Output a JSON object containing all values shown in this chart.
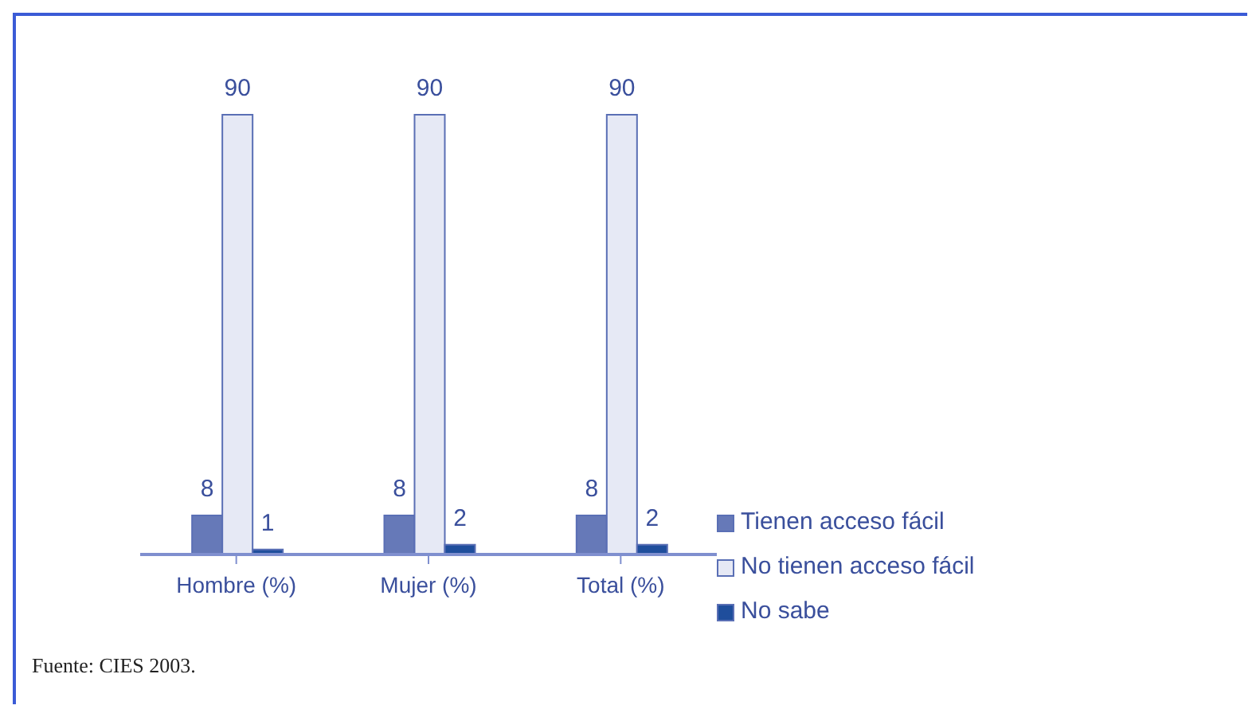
{
  "chart_data": {
    "type": "bar",
    "categories": [
      "Hombre (%)",
      "Mujer (%)",
      "Total (%)"
    ],
    "series": [
      {
        "name": "Tienen acceso fácil",
        "color": "#6679b8",
        "values": [
          8,
          8,
          8
        ]
      },
      {
        "name": "No tienen acceso fácil",
        "color": "#e6e9f5",
        "values": [
          90,
          90,
          90
        ]
      },
      {
        "name": "No sabe",
        "color": "#1f4e9c",
        "values": [
          1,
          2,
          2
        ]
      }
    ],
    "data_labels": true,
    "legend": "bottom right",
    "annotations": [
      "Fuente: CIES 2003."
    ]
  }
}
